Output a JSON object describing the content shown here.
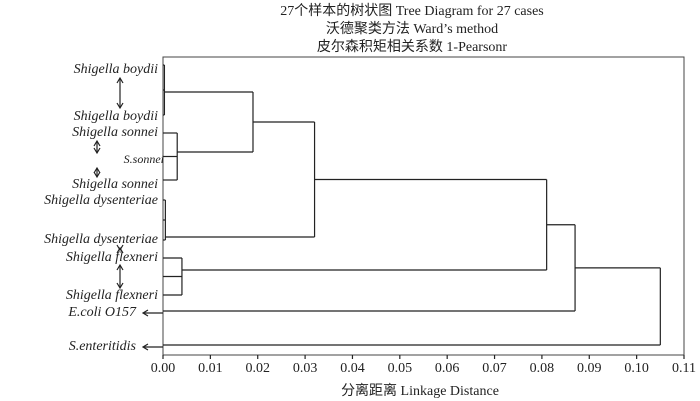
{
  "chart_data": {
    "type": "dendrogram",
    "title": [
      "27个样本的树状图 Tree Diagram for 27 cases",
      "沃德聚类方法 Ward’s method",
      "皮尔森积矩相关系数 1-Pearsonr"
    ],
    "x_label": "分离距离 Linkage Distance",
    "leaf_labels": [
      "Shigella boydii",
      "Shigella boydii",
      "Shigella sonnei",
      "S.sonnei",
      "Shigella sonnei",
      "Shigella dysenteriae",
      "Shigella dysenteriae",
      "Shigella flexneri",
      "Shigella flexneri",
      "E.coli O157",
      "S.enteritidis"
    ],
    "cluster_heights": [
      0.0003,
      0.003,
      0.0005,
      0.004
    ],
    "merge_heights": [
      0.019,
      0.032,
      0.081,
      0.087,
      0.105
    ],
    "xlim": [
      0,
      0.11
    ],
    "xticks": [
      {
        "value": 0,
        "label": "0.00"
      },
      0.01,
      0.02,
      0.03,
      0.04,
      0.05,
      0.06,
      0.07,
      0.08,
      0.09,
      {
        "value": 0.1,
        "label": "0.10"
      },
      0.11
    ],
    "color": "#222222"
  }
}
